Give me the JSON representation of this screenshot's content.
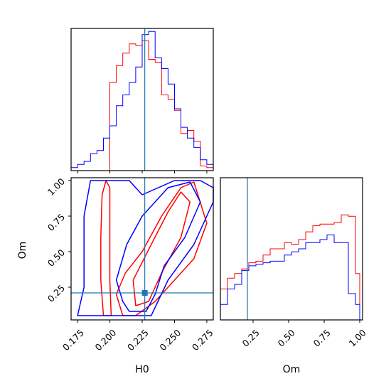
{
  "chart_data": {
    "type": "corner",
    "parameters": [
      "H0",
      "Om"
    ],
    "truth": {
      "H0": 0.227,
      "Om": 0.21
    },
    "colors": {
      "series_a": "#ff0000",
      "series_b": "#0000ff",
      "truth": "#1f77b4"
    },
    "series": [
      {
        "color": "#ff0000",
        "hist_H0": {
          "bins": [
            0.17,
            0.175,
            0.18,
            0.185,
            0.19,
            0.195,
            0.2,
            0.205,
            0.21,
            0.215,
            0.22,
            0.225,
            0.23,
            0.235,
            0.24,
            0.245,
            0.25,
            0.255,
            0.26,
            0.265,
            0.27,
            0.275,
            0.28
          ],
          "counts": [
            0,
            0,
            0,
            0,
            0,
            0,
            0.57,
            0.68,
            0.76,
            0.82,
            0.81,
            0.84,
            0.72,
            0.7,
            0.49,
            0.46,
            0.39,
            0.24,
            0.26,
            0.19,
            0.03,
            0.02
          ]
        },
        "hist_Om": {
          "bins": [
            0.02,
            0.07,
            0.12,
            0.17,
            0.22,
            0.27,
            0.32,
            0.37,
            0.42,
            0.47,
            0.52,
            0.57,
            0.62,
            0.67,
            0.72,
            0.77,
            0.82,
            0.87,
            0.92,
            0.97,
            1.0
          ],
          "counts": [
            0.2,
            0.27,
            0.3,
            0.33,
            0.37,
            0.38,
            0.42,
            0.46,
            0.46,
            0.5,
            0.49,
            0.52,
            0.57,
            0.61,
            0.62,
            0.62,
            0.63,
            0.68,
            0.67,
            0.3
          ]
        },
        "contours": [
          [
            [
              0.195,
              0.05
            ],
            [
              0.193,
              0.3
            ],
            [
              0.193,
              0.6
            ],
            [
              0.194,
              0.9
            ],
            [
              0.197,
              1.0
            ],
            [
              0.2,
              0.95
            ],
            [
              0.2,
              0.6
            ],
            [
              0.2,
              0.3
            ],
            [
              0.201,
              0.05
            ]
          ],
          [
            [
              0.21,
              0.05
            ],
            [
              0.205,
              0.2
            ],
            [
              0.212,
              0.35
            ],
            [
              0.225,
              0.5
            ],
            [
              0.24,
              0.75
            ],
            [
              0.255,
              0.95
            ],
            [
              0.265,
              0.99
            ],
            [
              0.275,
              0.7
            ],
            [
              0.265,
              0.45
            ],
            [
              0.25,
              0.3
            ],
            [
              0.235,
              0.15
            ],
            [
              0.22,
              0.05
            ]
          ],
          [
            [
              0.22,
              0.12
            ],
            [
              0.218,
              0.3
            ],
            [
              0.232,
              0.55
            ],
            [
              0.245,
              0.78
            ],
            [
              0.255,
              0.92
            ],
            [
              0.262,
              0.85
            ],
            [
              0.255,
              0.6
            ],
            [
              0.24,
              0.35
            ],
            [
              0.23,
              0.15
            ]
          ]
        ]
      },
      {
        "color": "#0000ff",
        "hist_H0": {
          "bins": [
            0.17,
            0.175,
            0.18,
            0.185,
            0.19,
            0.195,
            0.2,
            0.205,
            0.21,
            0.215,
            0.22,
            0.225,
            0.23,
            0.235,
            0.24,
            0.245,
            0.25,
            0.255,
            0.26,
            0.265,
            0.27,
            0.275,
            0.28
          ],
          "counts": [
            0.02,
            0.04,
            0.06,
            0.11,
            0.13,
            0.21,
            0.29,
            0.42,
            0.49,
            0.57,
            0.67,
            0.88,
            0.9,
            0.73,
            0.66,
            0.56,
            0.4,
            0.28,
            0.21,
            0.15,
            0.07,
            0.04
          ]
        },
        "hist_Om": {
          "bins": [
            0.02,
            0.07,
            0.12,
            0.17,
            0.22,
            0.27,
            0.32,
            0.37,
            0.42,
            0.47,
            0.52,
            0.57,
            0.62,
            0.67,
            0.72,
            0.77,
            0.82,
            0.87,
            0.92,
            0.97,
            1.0
          ],
          "counts": [
            0.1,
            0.2,
            0.23,
            0.32,
            0.35,
            0.36,
            0.37,
            0.38,
            0.38,
            0.42,
            0.44,
            0.46,
            0.5,
            0.5,
            0.52,
            0.55,
            0.5,
            0.5,
            0.17,
            0.1
          ]
        },
        "contours": [
          [
            [
              0.175,
              0.05
            ],
            [
              0.18,
              0.25
            ],
            [
              0.18,
              0.5
            ],
            [
              0.18,
              0.75
            ],
            [
              0.185,
              1.0
            ],
            [
              0.2,
              1.0
            ],
            [
              0.215,
              1.0
            ],
            [
              0.225,
              0.9
            ],
            [
              0.25,
              1.0
            ],
            [
              0.27,
              1.0
            ],
            [
              0.28,
              0.95
            ],
            [
              0.28,
              0.85
            ],
            [
              0.265,
              0.55
            ],
            [
              0.245,
              0.3
            ],
            [
              0.232,
              0.05
            ],
            [
              0.2,
              0.05
            ]
          ],
          [
            [
              0.21,
              0.15
            ],
            [
              0.205,
              0.3
            ],
            [
              0.213,
              0.55
            ],
            [
              0.225,
              0.75
            ],
            [
              0.245,
              0.95
            ],
            [
              0.262,
              0.99
            ],
            [
              0.27,
              0.85
            ],
            [
              0.258,
              0.6
            ],
            [
              0.242,
              0.4
            ],
            [
              0.235,
              0.2
            ],
            [
              0.228,
              0.08
            ],
            [
              0.215,
              0.08
            ]
          ]
        ]
      }
    ],
    "axes": {
      "H0": {
        "label": "H0",
        "range": [
          0.17,
          0.28
        ],
        "ticks": [
          0.175,
          0.2,
          0.225,
          0.25,
          0.275
        ],
        "tick_labels": [
          "0.175",
          "0.200",
          "0.225",
          "0.250",
          "0.275"
        ]
      },
      "Om": {
        "label": "Om",
        "range": [
          0.02,
          1.02
        ],
        "ticks": [
          0.25,
          0.5,
          0.75,
          1.0
        ],
        "tick_labels": [
          "0.25",
          "0.50",
          "0.75",
          "1.00"
        ]
      }
    },
    "grid": false,
    "legend": "none"
  }
}
